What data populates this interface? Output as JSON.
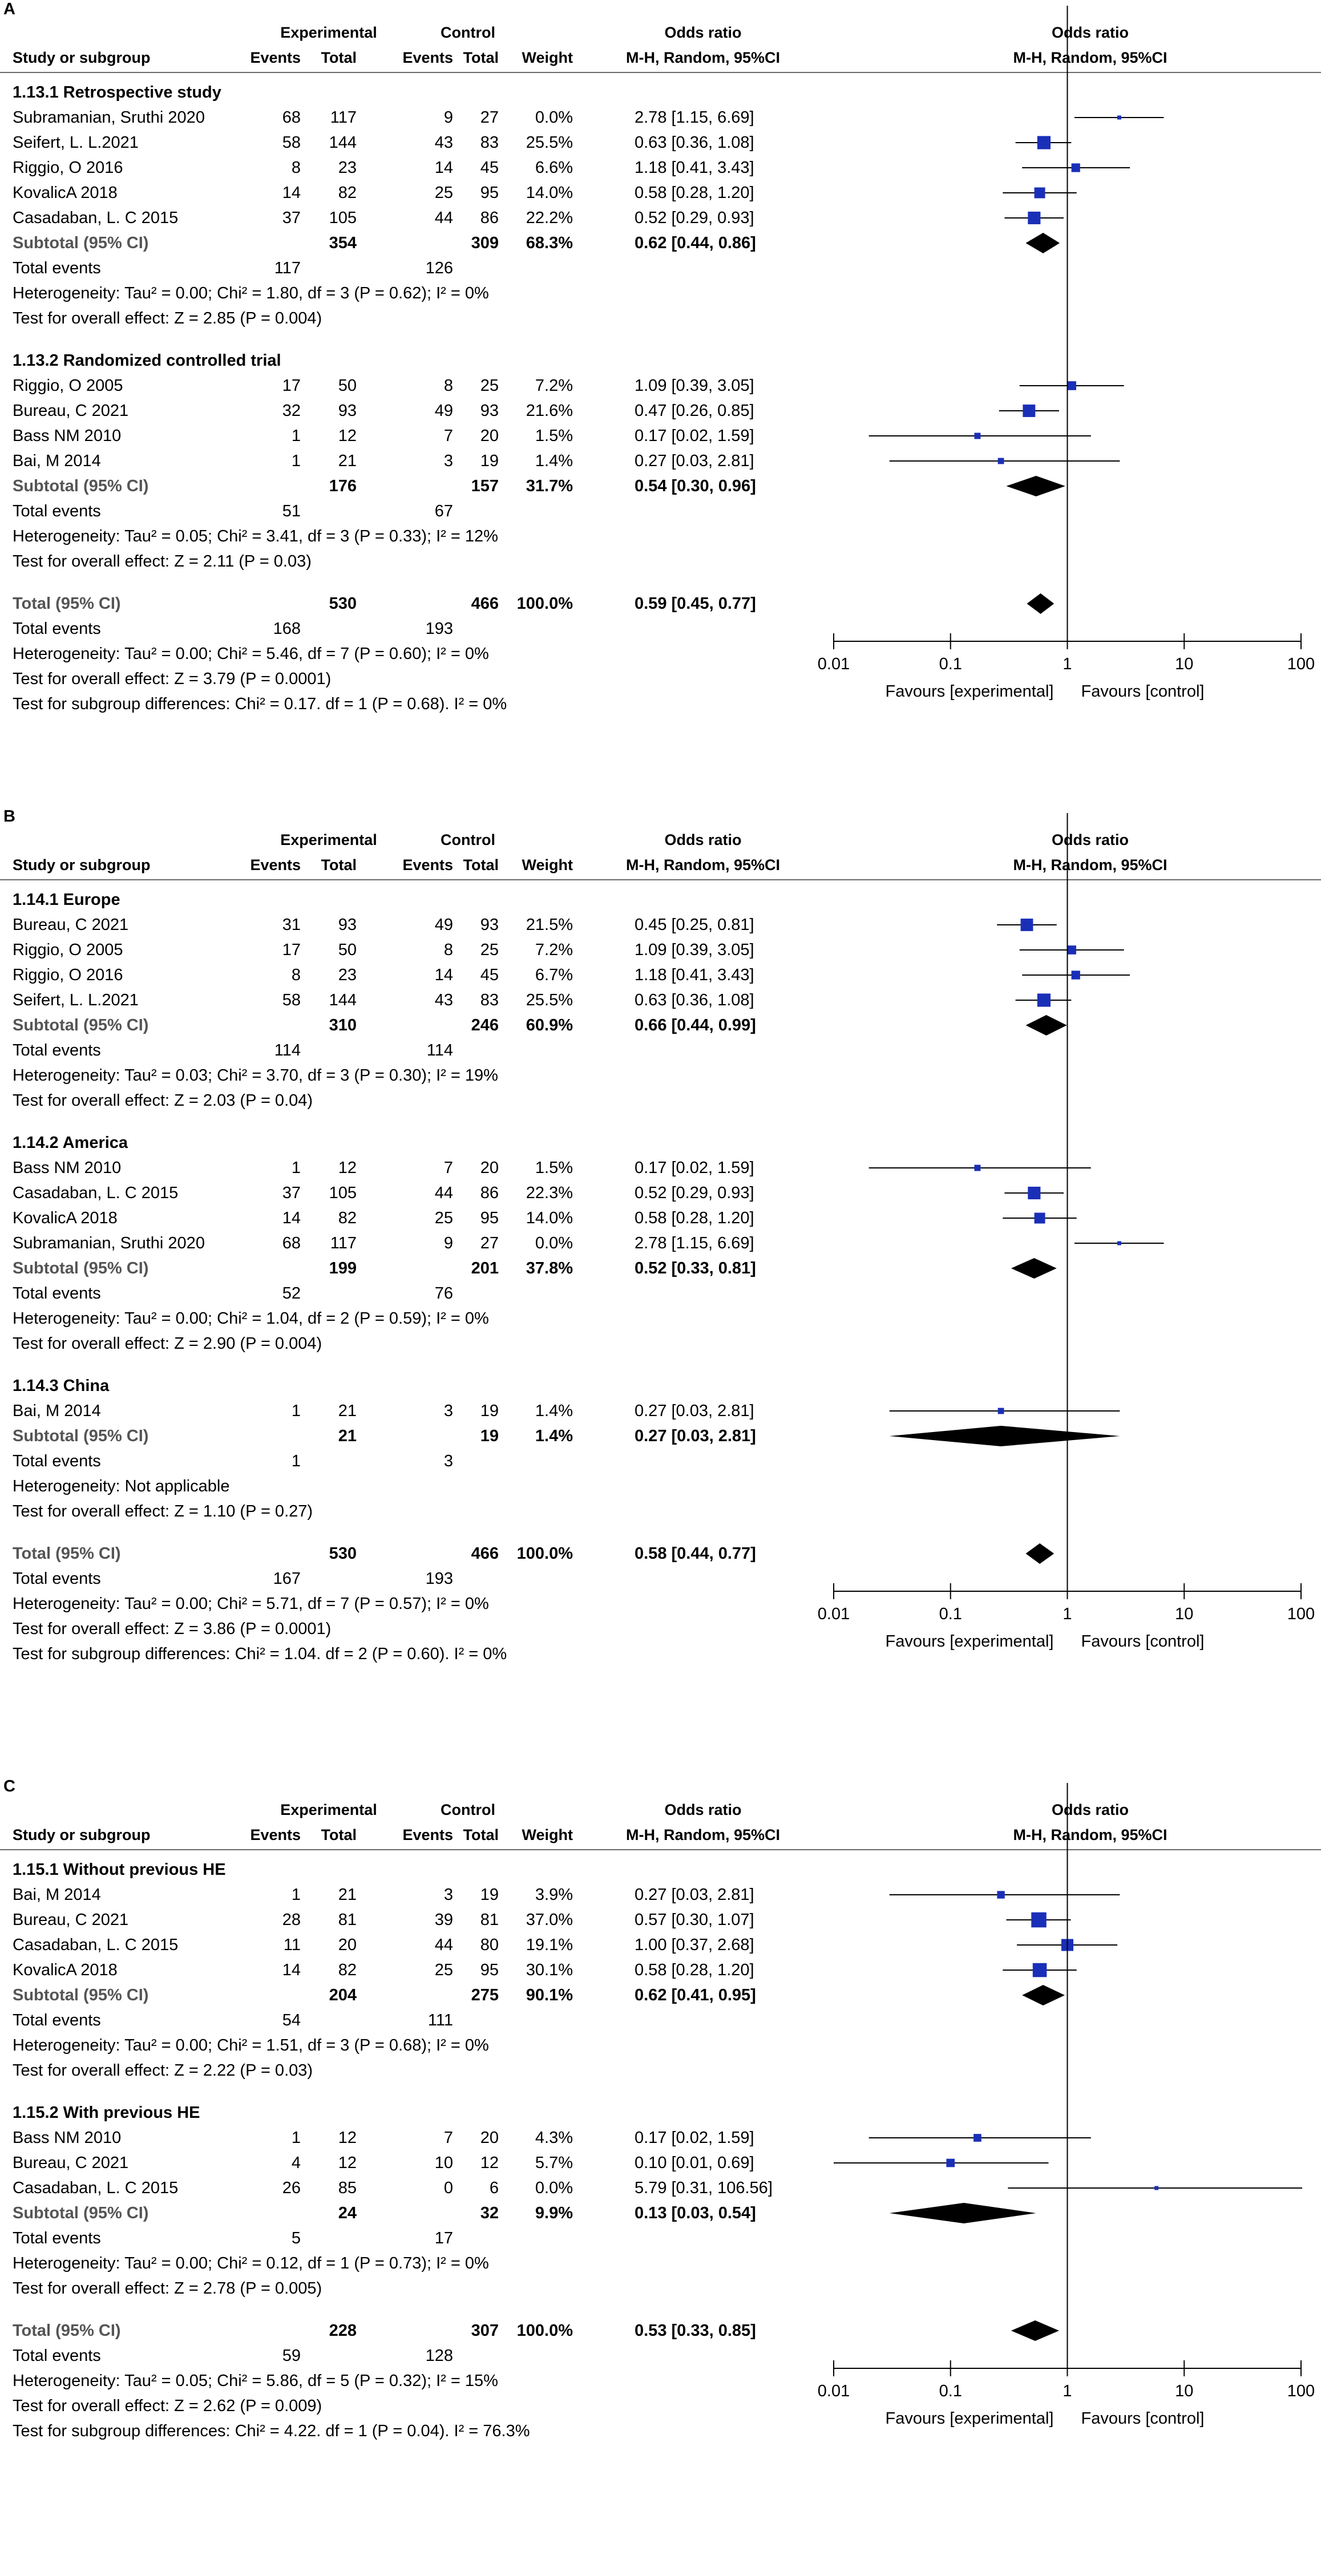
{
  "headers": {
    "study": "Study or subgroup",
    "experimental": "Experimental",
    "control": "Control",
    "events": "Events",
    "total": "Total",
    "weight": "Weight",
    "or_top": "Odds ratio",
    "or_method": "M-H, Random, 95%CI"
  },
  "axis": {
    "ticks": [
      "0.01",
      "0.1",
      "1",
      "10",
      "100"
    ],
    "favours_left": "Favours [experimental]",
    "favours_right": "Favours [control]"
  },
  "colors": {
    "marker": "#1a2fb8",
    "diamond": "#000000",
    "muted": "#555555"
  },
  "chart_data": [
    {
      "type": "forest",
      "panel_label": "A",
      "xscale": "log",
      "xlim": [
        0.01,
        100
      ],
      "rows": [
        {
          "kind": "group",
          "label": "1.13.1 Retrospective study"
        },
        {
          "kind": "study",
          "label": "Subramanian, Sruthi 2020",
          "e_ev": "68",
          "e_tot": "117",
          "c_ev": "9",
          "c_tot": "27",
          "weight": "0.0%",
          "ci_text": "2.78 [1.15, 6.69]",
          "or": 2.78,
          "lo": 1.15,
          "hi": 6.69
        },
        {
          "kind": "study",
          "label": "Seifert, L. L.2021",
          "e_ev": "58",
          "e_tot": "144",
          "c_ev": "43",
          "c_tot": "83",
          "weight": "25.5%",
          "ci_text": "0.63 [0.36, 1.08]",
          "or": 0.63,
          "lo": 0.36,
          "hi": 1.08
        },
        {
          "kind": "study",
          "label": "Riggio, O 2016",
          "e_ev": "8",
          "e_tot": "23",
          "c_ev": "14",
          "c_tot": "45",
          "weight": "6.6%",
          "ci_text": "1.18 [0.41, 3.43]",
          "or": 1.18,
          "lo": 0.41,
          "hi": 3.43
        },
        {
          "kind": "study",
          "label": "KovalicA 2018",
          "e_ev": "14",
          "e_tot": "82",
          "c_ev": "25",
          "c_tot": "95",
          "weight": "14.0%",
          "ci_text": "0.58 [0.28, 1.20]",
          "or": 0.58,
          "lo": 0.28,
          "hi": 1.2
        },
        {
          "kind": "study",
          "label": "Casadaban, L. C 2015",
          "e_ev": "37",
          "e_tot": "105",
          "c_ev": "44",
          "c_tot": "86",
          "weight": "22.2%",
          "ci_text": "0.52 [0.29, 0.93]",
          "or": 0.52,
          "lo": 0.29,
          "hi": 0.93
        },
        {
          "kind": "subtotal",
          "label": "Subtotal (95% CI)",
          "e_tot": "354",
          "c_tot": "309",
          "weight": "68.3%",
          "ci_text": "0.62 [0.44, 0.86]",
          "or": 0.62,
          "lo": 0.44,
          "hi": 0.86
        },
        {
          "kind": "events",
          "label": "Total events",
          "e_ev": "117",
          "c_ev": "126"
        },
        {
          "kind": "text",
          "label": "Heterogeneity: Tau² = 0.00; Chi² = 1.80, df = 3 (P = 0.62); I² = 0%"
        },
        {
          "kind": "text",
          "label": "Test for overall effect: Z = 2.85 (P = 0.004)"
        },
        {
          "kind": "gap"
        },
        {
          "kind": "group",
          "label": "1.13.2 Randomized controlled trial"
        },
        {
          "kind": "study",
          "label": "Riggio, O 2005",
          "e_ev": "17",
          "e_tot": "50",
          "c_ev": "8",
          "c_tot": "25",
          "weight": "7.2%",
          "ci_text": "1.09 [0.39, 3.05]",
          "or": 1.09,
          "lo": 0.39,
          "hi": 3.05
        },
        {
          "kind": "study",
          "label": "Bureau, C 2021",
          "e_ev": "32",
          "e_tot": "93",
          "c_ev": "49",
          "c_tot": "93",
          "weight": "21.6%",
          "ci_text": "0.47 [0.26, 0.85]",
          "or": 0.47,
          "lo": 0.26,
          "hi": 0.85
        },
        {
          "kind": "study",
          "label": "Bass NM 2010",
          "e_ev": "1",
          "e_tot": "12",
          "c_ev": "7",
          "c_tot": "20",
          "weight": "1.5%",
          "ci_text": "0.17 [0.02, 1.59]",
          "or": 0.17,
          "lo": 0.02,
          "hi": 1.59
        },
        {
          "kind": "study",
          "label": "Bai, M 2014",
          "e_ev": "1",
          "e_tot": "21",
          "c_ev": "3",
          "c_tot": "19",
          "weight": "1.4%",
          "ci_text": "0.27 [0.03, 2.81]",
          "or": 0.27,
          "lo": 0.03,
          "hi": 2.81
        },
        {
          "kind": "subtotal",
          "label": "Subtotal (95% CI)",
          "e_tot": "176",
          "c_tot": "157",
          "weight": "31.7%",
          "ci_text": "0.54 [0.30, 0.96]",
          "or": 0.54,
          "lo": 0.3,
          "hi": 0.96
        },
        {
          "kind": "events",
          "label": "Total events",
          "e_ev": "51",
          "c_ev": "67"
        },
        {
          "kind": "text",
          "label": "Heterogeneity: Tau² = 0.05; Chi² = 3.41, df = 3 (P = 0.33); I² = 12%"
        },
        {
          "kind": "text",
          "label": "Test for overall effect: Z = 2.11 (P = 0.03)"
        },
        {
          "kind": "gap"
        },
        {
          "kind": "total",
          "label": "Total (95% CI)",
          "e_tot": "530",
          "c_tot": "466",
          "weight": "100.0%",
          "ci_text": "0.59 [0.45, 0.77]",
          "or": 0.59,
          "lo": 0.45,
          "hi": 0.77
        },
        {
          "kind": "events",
          "label": "Total events",
          "e_ev": "168",
          "c_ev": "193"
        },
        {
          "kind": "text",
          "label": "Heterogeneity: Tau² = 0.00; Chi² = 5.46, df = 7 (P = 0.60); I² = 0%"
        },
        {
          "kind": "text",
          "label": "Test for overall effect: Z = 3.79 (P = 0.0001)"
        },
        {
          "kind": "text",
          "label": "Test for subgroup differences: Chi² = 0.17. df = 1 (P = 0.68). I² = 0%"
        }
      ]
    },
    {
      "type": "forest",
      "panel_label": "B",
      "xscale": "log",
      "xlim": [
        0.01,
        100
      ],
      "rows": [
        {
          "kind": "group",
          "label": "1.14.1 Europe"
        },
        {
          "kind": "study",
          "label": "Bureau, C 2021",
          "e_ev": "31",
          "e_tot": "93",
          "c_ev": "49",
          "c_tot": "93",
          "weight": "21.5%",
          "ci_text": "0.45 [0.25, 0.81]",
          "or": 0.45,
          "lo": 0.25,
          "hi": 0.81
        },
        {
          "kind": "study",
          "label": "Riggio, O 2005",
          "e_ev": "17",
          "e_tot": "50",
          "c_ev": "8",
          "c_tot": "25",
          "weight": "7.2%",
          "ci_text": "1.09 [0.39, 3.05]",
          "or": 1.09,
          "lo": 0.39,
          "hi": 3.05
        },
        {
          "kind": "study",
          "label": "Riggio, O 2016",
          "e_ev": "8",
          "e_tot": "23",
          "c_ev": "14",
          "c_tot": "45",
          "weight": "6.7%",
          "ci_text": "1.18 [0.41, 3.43]",
          "or": 1.18,
          "lo": 0.41,
          "hi": 3.43
        },
        {
          "kind": "study",
          "label": "Seifert, L. L.2021",
          "e_ev": "58",
          "e_tot": "144",
          "c_ev": "43",
          "c_tot": "83",
          "weight": "25.5%",
          "ci_text": "0.63 [0.36, 1.08]",
          "or": 0.63,
          "lo": 0.36,
          "hi": 1.08
        },
        {
          "kind": "subtotal",
          "label": "Subtotal (95% CI)",
          "e_tot": "310",
          "c_tot": "246",
          "weight": "60.9%",
          "ci_text": "0.66 [0.44, 0.99]",
          "or": 0.66,
          "lo": 0.44,
          "hi": 0.99
        },
        {
          "kind": "events",
          "label": "Total events",
          "e_ev": "114",
          "c_ev": "114"
        },
        {
          "kind": "text",
          "label": "Heterogeneity: Tau² = 0.03; Chi² = 3.70, df = 3 (P = 0.30); I² = 19%"
        },
        {
          "kind": "text",
          "label": "Test for overall effect: Z = 2.03 (P = 0.04)"
        },
        {
          "kind": "gap"
        },
        {
          "kind": "group",
          "label": "1.14.2 America"
        },
        {
          "kind": "study",
          "label": "Bass NM 2010",
          "e_ev": "1",
          "e_tot": "12",
          "c_ev": "7",
          "c_tot": "20",
          "weight": "1.5%",
          "ci_text": "0.17 [0.02, 1.59]",
          "or": 0.17,
          "lo": 0.02,
          "hi": 1.59
        },
        {
          "kind": "study",
          "label": "Casadaban, L. C 2015",
          "e_ev": "37",
          "e_tot": "105",
          "c_ev": "44",
          "c_tot": "86",
          "weight": "22.3%",
          "ci_text": "0.52 [0.29, 0.93]",
          "or": 0.52,
          "lo": 0.29,
          "hi": 0.93
        },
        {
          "kind": "study",
          "label": "KovalicA 2018",
          "e_ev": "14",
          "e_tot": "82",
          "c_ev": "25",
          "c_tot": "95",
          "weight": "14.0%",
          "ci_text": "0.58 [0.28, 1.20]",
          "or": 0.58,
          "lo": 0.28,
          "hi": 1.2
        },
        {
          "kind": "study",
          "label": "Subramanian, Sruthi 2020",
          "e_ev": "68",
          "e_tot": "117",
          "c_ev": "9",
          "c_tot": "27",
          "weight": "0.0%",
          "ci_text": "2.78 [1.15, 6.69]",
          "or": 2.78,
          "lo": 1.15,
          "hi": 6.69
        },
        {
          "kind": "subtotal",
          "label": "Subtotal (95% CI)",
          "e_tot": "199",
          "c_tot": "201",
          "weight": "37.8%",
          "ci_text": "0.52 [0.33, 0.81]",
          "or": 0.52,
          "lo": 0.33,
          "hi": 0.81
        },
        {
          "kind": "events",
          "label": "Total events",
          "e_ev": "52",
          "c_ev": "76"
        },
        {
          "kind": "text",
          "label": "Heterogeneity: Tau² = 0.00; Chi² = 1.04, df = 2 (P = 0.59); I² = 0%"
        },
        {
          "kind": "text",
          "label": "Test for overall effect: Z = 2.90 (P = 0.004)"
        },
        {
          "kind": "gap"
        },
        {
          "kind": "group",
          "label": "1.14.3 China"
        },
        {
          "kind": "study",
          "label": "Bai, M 2014",
          "e_ev": "1",
          "e_tot": "21",
          "c_ev": "3",
          "c_tot": "19",
          "weight": "1.4%",
          "ci_text": "0.27 [0.03, 2.81]",
          "or": 0.27,
          "lo": 0.03,
          "hi": 2.81
        },
        {
          "kind": "subtotal",
          "label": "Subtotal (95% CI)",
          "e_tot": "21",
          "c_tot": "19",
          "weight": "1.4%",
          "ci_text": "0.27 [0.03, 2.81]",
          "or": 0.27,
          "lo": 0.03,
          "hi": 2.81
        },
        {
          "kind": "events",
          "label": "Total events",
          "e_ev": "1",
          "c_ev": "3"
        },
        {
          "kind": "text",
          "label": "Heterogeneity: Not applicable"
        },
        {
          "kind": "text",
          "label": "Test for overall effect: Z = 1.10 (P = 0.27)"
        },
        {
          "kind": "gap"
        },
        {
          "kind": "total",
          "label": "Total (95% CI)",
          "e_tot": "530",
          "c_tot": "466",
          "weight": "100.0%",
          "ci_text": "0.58 [0.44, 0.77]",
          "or": 0.58,
          "lo": 0.44,
          "hi": 0.77
        },
        {
          "kind": "events",
          "label": "Total events",
          "e_ev": "167",
          "c_ev": "193"
        },
        {
          "kind": "text",
          "label": "Heterogeneity: Tau² = 0.00; Chi² = 5.71, df = 7 (P = 0.57); I² = 0%"
        },
        {
          "kind": "text",
          "label": "Test for overall effect: Z = 3.86 (P = 0.0001)"
        },
        {
          "kind": "text",
          "label": "Test for subgroup differences: Chi² = 1.04. df = 2 (P = 0.60). I² = 0%"
        }
      ]
    },
    {
      "type": "forest",
      "panel_label": "C",
      "xscale": "log",
      "xlim": [
        0.01,
        100
      ],
      "rows": [
        {
          "kind": "group",
          "label": "1.15.1 Without previous HE"
        },
        {
          "kind": "study",
          "label": "Bai, M 2014",
          "e_ev": "1",
          "e_tot": "21",
          "c_ev": "3",
          "c_tot": "19",
          "weight": "3.9%",
          "ci_text": "0.27 [0.03, 2.81]",
          "or": 0.27,
          "lo": 0.03,
          "hi": 2.81
        },
        {
          "kind": "study",
          "label": "Bureau, C 2021",
          "e_ev": "28",
          "e_tot": "81",
          "c_ev": "39",
          "c_tot": "81",
          "weight": "37.0%",
          "ci_text": "0.57 [0.30, 1.07]",
          "or": 0.57,
          "lo": 0.3,
          "hi": 1.07
        },
        {
          "kind": "study",
          "label": "Casadaban, L. C 2015",
          "e_ev": "11",
          "e_tot": "20",
          "c_ev": "44",
          "c_tot": "80",
          "weight": "19.1%",
          "ci_text": "1.00 [0.37, 2.68]",
          "or": 1.0,
          "lo": 0.37,
          "hi": 2.68
        },
        {
          "kind": "study",
          "label": "KovalicA 2018",
          "e_ev": "14",
          "e_tot": "82",
          "c_ev": "25",
          "c_tot": "95",
          "weight": "30.1%",
          "ci_text": "0.58 [0.28, 1.20]",
          "or": 0.58,
          "lo": 0.28,
          "hi": 1.2
        },
        {
          "kind": "subtotal",
          "label": "Subtotal (95% CI)",
          "e_tot": "204",
          "c_tot": "275",
          "weight": "90.1%",
          "ci_text": "0.62 [0.41, 0.95]",
          "or": 0.62,
          "lo": 0.41,
          "hi": 0.95
        },
        {
          "kind": "events",
          "label": "Total events",
          "e_ev": "54",
          "c_ev": "111"
        },
        {
          "kind": "text",
          "label": "Heterogeneity: Tau² = 0.00; Chi² = 1.51, df = 3 (P = 0.68); I² = 0%"
        },
        {
          "kind": "text",
          "label": "Test for overall effect: Z = 2.22 (P = 0.03)"
        },
        {
          "kind": "gap"
        },
        {
          "kind": "group",
          "label": "1.15.2 With previous HE"
        },
        {
          "kind": "study",
          "label": "Bass NM 2010",
          "e_ev": "1",
          "e_tot": "12",
          "c_ev": "7",
          "c_tot": "20",
          "weight": "4.3%",
          "ci_text": "0.17 [0.02, 1.59]",
          "or": 0.17,
          "lo": 0.02,
          "hi": 1.59
        },
        {
          "kind": "study",
          "label": "Bureau, C 2021",
          "e_ev": "4",
          "e_tot": "12",
          "c_ev": "10",
          "c_tot": "12",
          "weight": "5.7%",
          "ci_text": "0.10 [0.01, 0.69]",
          "or": 0.1,
          "lo": 0.01,
          "hi": 0.69
        },
        {
          "kind": "study",
          "label": "Casadaban, L. C 2015",
          "e_ev": "26",
          "e_tot": "85",
          "c_ev": "0",
          "c_tot": "6",
          "weight": "0.0%",
          "ci_text": "5.79 [0.31, 106.56]",
          "or": 5.79,
          "lo": 0.31,
          "hi": 106.56
        },
        {
          "kind": "subtotal",
          "label": "Subtotal (95% CI)",
          "e_tot": "24",
          "c_tot": "32",
          "weight": "9.9%",
          "ci_text": "0.13 [0.03, 0.54]",
          "or": 0.13,
          "lo": 0.03,
          "hi": 0.54
        },
        {
          "kind": "events",
          "label": "Total events",
          "e_ev": "5",
          "c_ev": "17"
        },
        {
          "kind": "text",
          "label": "Heterogeneity: Tau² = 0.00; Chi² = 0.12, df = 1 (P = 0.73); I² = 0%"
        },
        {
          "kind": "text",
          "label": "Test for overall effect: Z = 2.78 (P = 0.005)"
        },
        {
          "kind": "gap"
        },
        {
          "kind": "total",
          "label": "Total (95% CI)",
          "e_tot": "228",
          "c_tot": "307",
          "weight": "100.0%",
          "ci_text": "0.53 [0.33, 0.85]",
          "or": 0.53,
          "lo": 0.33,
          "hi": 0.85
        },
        {
          "kind": "events",
          "label": "Total events",
          "e_ev": "59",
          "c_ev": "128"
        },
        {
          "kind": "text",
          "label": "Heterogeneity: Tau² = 0.05; Chi² = 5.86, df = 5 (P = 0.32); I² = 15%"
        },
        {
          "kind": "text",
          "label": "Test for overall effect: Z = 2.62 (P = 0.009)"
        },
        {
          "kind": "text",
          "label": "Test for subgroup differences: Chi² = 4.22. df = 1 (P = 0.04). I² = 76.3%"
        }
      ]
    }
  ]
}
